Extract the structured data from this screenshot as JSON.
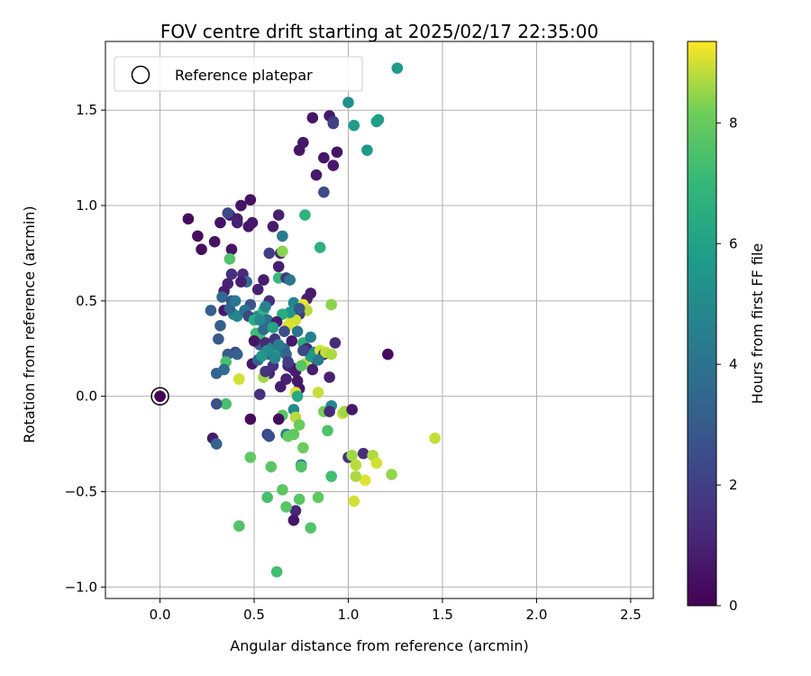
{
  "chart_data": {
    "type": "scatter",
    "title": "FOV centre drift starting at 2025/02/17 22:35:00",
    "xlabel": "Angular distance from reference (arcmin)",
    "ylabel": "Rotation from reference (arcmin)",
    "xlim": [
      -0.29,
      2.62
    ],
    "ylim": [
      -1.06,
      1.86
    ],
    "xticks": [
      0.0,
      0.5,
      1.0,
      1.5,
      2.0,
      2.5
    ],
    "yticks": [
      -1.0,
      -0.5,
      0.0,
      0.5,
      1.0,
      1.5
    ],
    "xtick_labels": [
      "0.0",
      "0.5",
      "1.0",
      "1.5",
      "2.0",
      "2.5"
    ],
    "ytick_labels": [
      "−1.0",
      "−0.5",
      "0.0",
      "0.5",
      "1.0",
      "1.5"
    ],
    "grid": true,
    "legend_position": "top-left",
    "reference": {
      "name": "Reference platepar",
      "x": 0.0,
      "y": 0.0
    },
    "colorbar": {
      "label": "Hours from first FF file",
      "colormap": "viridis",
      "range": [
        0,
        9.35
      ],
      "ticks": [
        0,
        2,
        4,
        6,
        8
      ],
      "tick_labels": [
        "0",
        "2",
        "4",
        "6",
        "8"
      ]
    },
    "points": [
      {
        "x": 0.15,
        "y": 0.93,
        "c": 0.3
      },
      {
        "x": 0.2,
        "y": 0.84,
        "c": 0.4
      },
      {
        "x": 0.22,
        "y": 0.77,
        "c": 0.4
      },
      {
        "x": 0.29,
        "y": 0.81,
        "c": 0.5
      },
      {
        "x": 0.32,
        "y": 0.91,
        "c": 0.5
      },
      {
        "x": 0.37,
        "y": 0.95,
        "c": 0.7
      },
      {
        "x": 0.41,
        "y": 0.93,
        "c": 0.8
      },
      {
        "x": 0.38,
        "y": 0.77,
        "c": 0.6
      },
      {
        "x": 0.43,
        "y": 1.0,
        "c": 0.6
      },
      {
        "x": 0.48,
        "y": 1.03,
        "c": 0.5
      },
      {
        "x": 0.47,
        "y": 0.89,
        "c": 0.6
      },
      {
        "x": 0.49,
        "y": 0.91,
        "c": 0.7
      },
      {
        "x": 0.36,
        "y": 0.96,
        "c": 2.3
      },
      {
        "x": 0.37,
        "y": 0.72,
        "c": 7.6
      },
      {
        "x": 0.41,
        "y": 0.91,
        "c": 1.0
      },
      {
        "x": 0.38,
        "y": 0.64,
        "c": 1.5
      },
      {
        "x": 0.44,
        "y": 0.64,
        "c": 1.3
      },
      {
        "x": 0.36,
        "y": 0.59,
        "c": 1.0
      },
      {
        "x": 0.34,
        "y": 0.55,
        "c": 0.8
      },
      {
        "x": 0.33,
        "y": 0.52,
        "c": 3.6
      },
      {
        "x": 0.34,
        "y": 0.45,
        "c": 0.7
      },
      {
        "x": 0.27,
        "y": 0.45,
        "c": 3.1
      },
      {
        "x": 0.32,
        "y": 0.37,
        "c": 3.2
      },
      {
        "x": 0.31,
        "y": 0.3,
        "c": 3.0
      },
      {
        "x": 0.38,
        "y": 0.5,
        "c": 2.7
      },
      {
        "x": 0.39,
        "y": 0.43,
        "c": 4.5
      },
      {
        "x": 0.41,
        "y": 0.42,
        "c": 4.8
      },
      {
        "x": 0.46,
        "y": 0.6,
        "c": 3.7
      },
      {
        "x": 0.48,
        "y": 0.48,
        "c": 2.8
      },
      {
        "x": 0.52,
        "y": 0.42,
        "c": 5.2
      },
      {
        "x": 0.52,
        "y": 0.56,
        "c": 1.0
      },
      {
        "x": 0.55,
        "y": 0.61,
        "c": 0.8
      },
      {
        "x": 0.58,
        "y": 0.5,
        "c": 1.4
      },
      {
        "x": 0.58,
        "y": 0.75,
        "c": 2.0
      },
      {
        "x": 0.6,
        "y": 0.89,
        "c": 0.8
      },
      {
        "x": 0.63,
        "y": 0.95,
        "c": 0.9
      },
      {
        "x": 0.63,
        "y": 0.68,
        "c": 0.9
      },
      {
        "x": 0.64,
        "y": 0.75,
        "c": 1.1
      },
      {
        "x": 0.65,
        "y": 0.84,
        "c": 4.3
      },
      {
        "x": 0.65,
        "y": 0.76,
        "c": 8.4
      },
      {
        "x": 0.63,
        "y": 0.62,
        "c": 7.1
      },
      {
        "x": 0.67,
        "y": 0.62,
        "c": 1.7
      },
      {
        "x": 0.69,
        "y": 0.61,
        "c": 4.2
      },
      {
        "x": 0.71,
        "y": 0.49,
        "c": 4.8
      },
      {
        "x": 0.78,
        "y": 0.51,
        "c": 0.9
      },
      {
        "x": 0.8,
        "y": 0.54,
        "c": 0.8
      },
      {
        "x": 0.76,
        "y": 0.48,
        "c": 9.2
      },
      {
        "x": 0.78,
        "y": 0.45,
        "c": 8.8
      },
      {
        "x": 0.74,
        "y": 0.43,
        "c": 1.8
      },
      {
        "x": 0.7,
        "y": 0.4,
        "c": 8.9
      },
      {
        "x": 0.72,
        "y": 0.4,
        "c": 9.0
      },
      {
        "x": 0.68,
        "y": 0.37,
        "c": 9.1
      },
      {
        "x": 0.69,
        "y": 0.44,
        "c": 5.5
      },
      {
        "x": 0.65,
        "y": 0.43,
        "c": 6.5
      },
      {
        "x": 0.55,
        "y": 0.45,
        "c": 6.8
      },
      {
        "x": 0.56,
        "y": 0.47,
        "c": 4.7
      },
      {
        "x": 0.57,
        "y": 0.4,
        "c": 3.9
      },
      {
        "x": 0.53,
        "y": 0.31,
        "c": 7.3
      },
      {
        "x": 0.51,
        "y": 0.33,
        "c": 7.2
      },
      {
        "x": 0.53,
        "y": 0.27,
        "c": 3.1
      },
      {
        "x": 0.5,
        "y": 0.29,
        "c": 0.6
      },
      {
        "x": 0.56,
        "y": 0.28,
        "c": 1.2
      },
      {
        "x": 0.58,
        "y": 0.22,
        "c": 3.5
      },
      {
        "x": 0.6,
        "y": 0.26,
        "c": 4.6
      },
      {
        "x": 0.63,
        "y": 0.23,
        "c": 5.7
      },
      {
        "x": 0.66,
        "y": 0.25,
        "c": 3.8
      },
      {
        "x": 0.67,
        "y": 0.22,
        "c": 3.3
      },
      {
        "x": 0.68,
        "y": 0.16,
        "c": 1.0
      },
      {
        "x": 0.7,
        "y": 0.15,
        "c": 1.1
      },
      {
        "x": 0.72,
        "y": 0.13,
        "c": 0.8
      },
      {
        "x": 0.73,
        "y": 0.08,
        "c": 0.7
      },
      {
        "x": 0.74,
        "y": 0.04,
        "c": 0.7
      },
      {
        "x": 0.67,
        "y": 0.09,
        "c": 1.0
      },
      {
        "x": 0.64,
        "y": 0.05,
        "c": 0.8
      },
      {
        "x": 0.58,
        "y": 0.12,
        "c": 1.1
      },
      {
        "x": 0.55,
        "y": 0.1,
        "c": 8.6
      },
      {
        "x": 0.49,
        "y": 0.17,
        "c": 0.7
      },
      {
        "x": 0.52,
        "y": 0.19,
        "c": 3.4
      },
      {
        "x": 0.53,
        "y": 0.01,
        "c": 1.4
      },
      {
        "x": 0.42,
        "y": 0.09,
        "c": 9.0
      },
      {
        "x": 0.4,
        "y": 0.23,
        "c": 2.1
      },
      {
        "x": 0.36,
        "y": 0.22,
        "c": 3.0
      },
      {
        "x": 0.35,
        "y": 0.18,
        "c": 7.4
      },
      {
        "x": 0.3,
        "y": 0.12,
        "c": 3.4
      },
      {
        "x": 0.34,
        "y": 0.14,
        "c": 3.7
      },
      {
        "x": 0.41,
        "y": 0.22,
        "c": 3.2
      },
      {
        "x": 0.6,
        "y": 0.16,
        "c": 1.5
      },
      {
        "x": 0.61,
        "y": 0.3,
        "c": 1.6
      },
      {
        "x": 0.62,
        "y": 0.39,
        "c": 0.8
      },
      {
        "x": 0.66,
        "y": 0.34,
        "c": 2.6
      },
      {
        "x": 0.7,
        "y": 0.29,
        "c": 0.7
      },
      {
        "x": 0.76,
        "y": 0.28,
        "c": 6.6
      },
      {
        "x": 0.8,
        "y": 0.31,
        "c": 4.6
      },
      {
        "x": 0.78,
        "y": 0.25,
        "c": 1.2
      },
      {
        "x": 0.82,
        "y": 0.23,
        "c": 5.0
      },
      {
        "x": 0.83,
        "y": 0.19,
        "c": 3.6
      },
      {
        "x": 0.77,
        "y": 0.17,
        "c": 8.8
      },
      {
        "x": 0.75,
        "y": 0.16,
        "c": 7.7
      },
      {
        "x": 0.8,
        "y": 0.21,
        "c": 5.6
      },
      {
        "x": 0.85,
        "y": 0.24,
        "c": 9.0
      },
      {
        "x": 0.87,
        "y": 0.22,
        "c": 0.9
      },
      {
        "x": 0.88,
        "y": 0.23,
        "c": 8.9
      },
      {
        "x": 0.91,
        "y": 0.22,
        "c": 8.7
      },
      {
        "x": 0.93,
        "y": 0.28,
        "c": 1.3
      },
      {
        "x": 0.9,
        "y": 0.1,
        "c": 1.0
      },
      {
        "x": 0.91,
        "y": 0.48,
        "c": 8.4
      },
      {
        "x": 0.72,
        "y": 0.02,
        "c": 9.1
      },
      {
        "x": 0.73,
        "y": 0.0,
        "c": 6.3
      },
      {
        "x": 0.71,
        "y": -0.07,
        "c": 5.0
      },
      {
        "x": 0.72,
        "y": -0.11,
        "c": 8.8
      },
      {
        "x": 0.65,
        "y": -0.1,
        "c": 7.7
      },
      {
        "x": 0.84,
        "y": 0.02,
        "c": 8.9
      },
      {
        "x": 0.87,
        "y": -0.08,
        "c": 8.2
      },
      {
        "x": 0.91,
        "y": -0.05,
        "c": 4.9
      },
      {
        "x": 0.9,
        "y": -0.08,
        "c": 1.2
      },
      {
        "x": 0.97,
        "y": -0.09,
        "c": 8.9
      },
      {
        "x": 0.98,
        "y": -0.08,
        "c": 8.6
      },
      {
        "x": 1.02,
        "y": -0.07,
        "c": 0.7
      },
      {
        "x": 0.74,
        "y": -0.15,
        "c": 8.1
      },
      {
        "x": 0.89,
        "y": -0.18,
        "c": 7.5
      },
      {
        "x": 0.63,
        "y": -0.12,
        "c": 0.3
      },
      {
        "x": 0.48,
        "y": -0.12,
        "c": 0.3
      },
      {
        "x": 0.35,
        "y": -0.04,
        "c": 7.4
      },
      {
        "x": 0.3,
        "y": -0.04,
        "c": 2.6
      },
      {
        "x": 0.28,
        "y": -0.22,
        "c": 0.8
      },
      {
        "x": 0.3,
        "y": -0.25,
        "c": 3.3
      },
      {
        "x": 0.57,
        "y": -0.2,
        "c": 2.2
      },
      {
        "x": 0.58,
        "y": -0.21,
        "c": 2.6
      },
      {
        "x": 0.67,
        "y": -0.2,
        "c": 4.5
      },
      {
        "x": 0.68,
        "y": -0.21,
        "c": 8.0
      },
      {
        "x": 0.71,
        "y": -0.2,
        "c": 7.9
      },
      {
        "x": 0.76,
        "y": -0.27,
        "c": 8.1
      },
      {
        "x": 0.48,
        "y": -0.32,
        "c": 7.9
      },
      {
        "x": 0.59,
        "y": -0.37,
        "c": 7.8
      },
      {
        "x": 0.75,
        "y": -0.36,
        "c": 4.6
      },
      {
        "x": 0.75,
        "y": -0.37,
        "c": 7.6
      },
      {
        "x": 0.91,
        "y": -0.42,
        "c": 7.3
      },
      {
        "x": 1.0,
        "y": -0.32,
        "c": 1.6
      },
      {
        "x": 1.02,
        "y": -0.31,
        "c": 8.6
      },
      {
        "x": 1.04,
        "y": -0.36,
        "c": 8.8
      },
      {
        "x": 1.08,
        "y": -0.3,
        "c": 1.4
      },
      {
        "x": 1.13,
        "y": -0.31,
        "c": 8.7
      },
      {
        "x": 1.15,
        "y": -0.35,
        "c": 9.0
      },
      {
        "x": 1.23,
        "y": -0.41,
        "c": 8.5
      },
      {
        "x": 1.09,
        "y": -0.44,
        "c": 9.1
      },
      {
        "x": 1.04,
        "y": -0.42,
        "c": 8.7
      },
      {
        "x": 1.46,
        "y": -0.22,
        "c": 8.9
      },
      {
        "x": 1.03,
        "y": -0.55,
        "c": 9.0
      },
      {
        "x": 0.84,
        "y": -0.53,
        "c": 7.9
      },
      {
        "x": 0.74,
        "y": -0.54,
        "c": 7.7
      },
      {
        "x": 0.72,
        "y": -0.6,
        "c": 1.1
      },
      {
        "x": 0.71,
        "y": -0.65,
        "c": 0.6
      },
      {
        "x": 0.67,
        "y": -0.58,
        "c": 7.7
      },
      {
        "x": 0.65,
        "y": -0.49,
        "c": 7.8
      },
      {
        "x": 0.57,
        "y": -0.53,
        "c": 7.4
      },
      {
        "x": 0.8,
        "y": -0.69,
        "c": 7.6
      },
      {
        "x": 0.42,
        "y": -0.68,
        "c": 7.6
      },
      {
        "x": 0.62,
        "y": -0.92,
        "c": 7.3
      },
      {
        "x": 1.21,
        "y": 0.22,
        "c": 0.3
      },
      {
        "x": 1.0,
        "y": 1.54,
        "c": 5.3
      },
      {
        "x": 1.26,
        "y": 1.72,
        "c": 5.7
      },
      {
        "x": 1.03,
        "y": 1.42,
        "c": 5.8
      },
      {
        "x": 1.15,
        "y": 1.44,
        "c": 5.9
      },
      {
        "x": 1.16,
        "y": 1.45,
        "c": 5.9
      },
      {
        "x": 1.1,
        "y": 1.29,
        "c": 5.6
      },
      {
        "x": 0.81,
        "y": 1.46,
        "c": 0.6
      },
      {
        "x": 0.9,
        "y": 1.47,
        "c": 0.7
      },
      {
        "x": 0.92,
        "y": 1.44,
        "c": 1.6
      },
      {
        "x": 0.92,
        "y": 1.43,
        "c": 2.1
      },
      {
        "x": 0.74,
        "y": 1.29,
        "c": 0.6
      },
      {
        "x": 0.76,
        "y": 1.33,
        "c": 0.7
      },
      {
        "x": 0.87,
        "y": 1.25,
        "c": 0.6
      },
      {
        "x": 0.94,
        "y": 1.28,
        "c": 0.6
      },
      {
        "x": 0.92,
        "y": 1.21,
        "c": 0.7
      },
      {
        "x": 0.83,
        "y": 1.16,
        "c": 0.7
      },
      {
        "x": 0.87,
        "y": 1.07,
        "c": 2.4
      },
      {
        "x": 0.77,
        "y": 0.95,
        "c": 6.8
      },
      {
        "x": 0.85,
        "y": 0.78,
        "c": 6.7
      },
      {
        "x": 0.37,
        "y": 0.46,
        "c": 3.4
      },
      {
        "x": 0.4,
        "y": 0.5,
        "c": 4.2
      },
      {
        "x": 0.45,
        "y": 0.45,
        "c": 3.9
      },
      {
        "x": 0.47,
        "y": 0.42,
        "c": 2.3
      },
      {
        "x": 0.5,
        "y": 0.4,
        "c": 6.5
      },
      {
        "x": 0.55,
        "y": 0.35,
        "c": 3.6
      },
      {
        "x": 0.61,
        "y": 0.2,
        "c": 4.9
      },
      {
        "x": 0.63,
        "y": 0.27,
        "c": 4.4
      },
      {
        "x": 0.57,
        "y": 0.24,
        "c": 5.1
      },
      {
        "x": 0.54,
        "y": 0.21,
        "c": 5.5
      },
      {
        "x": 0.6,
        "y": 0.36,
        "c": 6.1
      },
      {
        "x": 0.73,
        "y": 0.34,
        "c": 4.1
      },
      {
        "x": 0.68,
        "y": 0.18,
        "c": 1.9
      },
      {
        "x": 0.81,
        "y": 0.14,
        "c": 0.9
      },
      {
        "x": 0.84,
        "y": 0.19,
        "c": 4.3
      },
      {
        "x": 0.74,
        "y": 0.46,
        "c": 2.9
      },
      {
        "x": 0.76,
        "y": 0.24,
        "c": 2.3
      },
      {
        "x": 0.53,
        "y": 0.4,
        "c": 5.0
      },
      {
        "x": 0.43,
        "y": 0.6,
        "c": 0.9
      },
      {
        "x": 0.56,
        "y": 0.13,
        "c": 1.6
      }
    ]
  }
}
